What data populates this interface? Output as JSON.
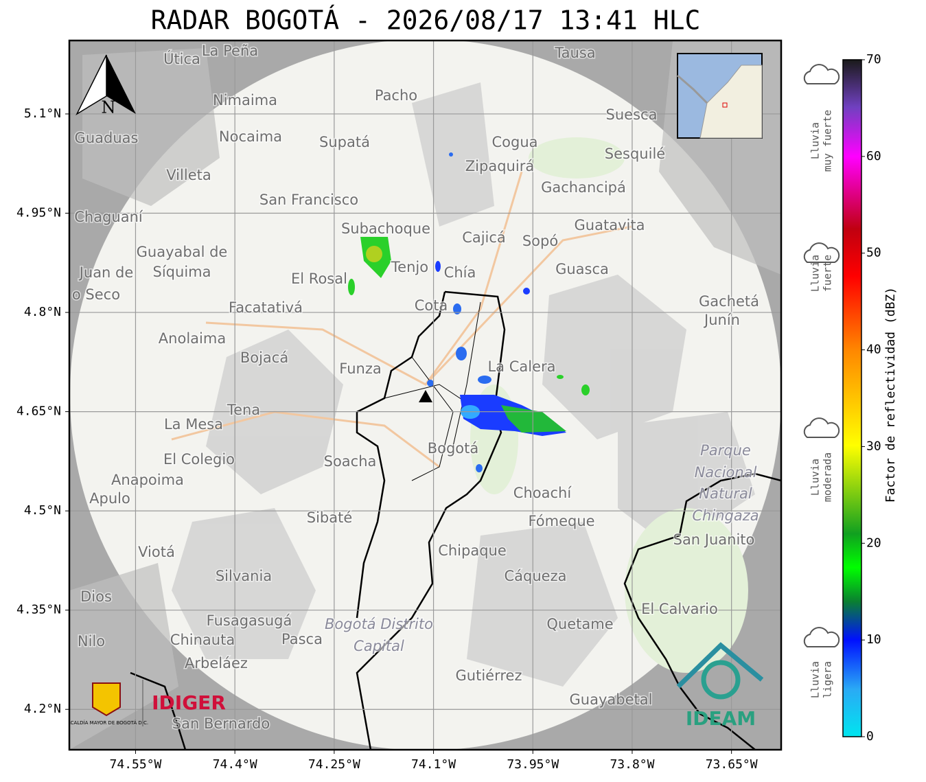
{
  "map": {
    "title": "RADAR BOGOTÁ - 2026/08/17 13:41 HLC",
    "xlim": [
      -74.65,
      -73.575
    ],
    "ylim": [
      4.139,
      5.211
    ],
    "xticks": [
      {
        "value": -74.55,
        "label": "74.55°W"
      },
      {
        "value": -74.4,
        "label": "74.4°W"
      },
      {
        "value": -74.25,
        "label": "74.25°W"
      },
      {
        "value": -74.1,
        "label": "74.1°W"
      },
      {
        "value": -73.95,
        "label": "73.95°W"
      },
      {
        "value": -73.8,
        "label": "73.8°W"
      },
      {
        "value": -73.65,
        "label": "73.65°W"
      }
    ],
    "yticks": [
      {
        "value": 5.1,
        "label": "5.1°N"
      },
      {
        "value": 4.95,
        "label": "4.95°N"
      },
      {
        "value": 4.8,
        "label": "4.8°N"
      },
      {
        "value": 4.65,
        "label": "4.65°N"
      },
      {
        "value": 4.5,
        "label": "4.5°N"
      },
      {
        "value": 4.35,
        "label": "4.35°N"
      },
      {
        "value": 4.2,
        "label": "4.2°N"
      }
    ],
    "grid": true,
    "north": "N",
    "places": [
      "La Peña",
      "Útica",
      "Tausa",
      "Pacho",
      "Nimaima",
      "Guaduas",
      "Nocaima",
      "Supatá",
      "Cogua",
      "Suesca",
      "Sesquilé",
      "Zipaquirá",
      "Villeta",
      "Gachancipá",
      "San Francisco",
      "Chaguaní",
      "Guatavita",
      "Subachoque",
      "Cajicá",
      "Sopó",
      "Guayabal de",
      "Síquima",
      "Tenjo",
      "Chía",
      "Guasca",
      "El Rosal",
      "Cota",
      "Facatativá",
      "Gachetá",
      "Junín",
      "Anolaima",
      "Bojacá",
      "Funza",
      "La Calera",
      "Tena",
      "La Mesa",
      "Bogotá",
      "Soacha",
      "El Colegio",
      "Anapoima",
      "Apulo",
      "Choachí",
      "Sibaté",
      "Fómeque",
      "Chipaque",
      "Viotá",
      "Silvania",
      "Cáqueza",
      "El Calvario",
      "Fusagasugá",
      "Chinauta",
      "Pasca",
      "Quetame",
      "Arbeláez",
      "Gutiérrez",
      "Guayabetal",
      "San Bernardo",
      "Nilo",
      "Dios",
      "San Juanito",
      "Juan de",
      "o Seco",
      "Parque",
      "Nacional",
      "Natural",
      "Chingaza",
      "Bogotá Distrito",
      "Capital"
    ],
    "logos": {
      "alcaldia": "ALCALDÍA MAYOR DE BOGOTÁ D.C.",
      "idiger": "IDIGER",
      "ideam": "IDEAM"
    }
  },
  "colorbar": {
    "label": "Factor de reflectividad (dBZ)",
    "lim": [
      0,
      70
    ],
    "ticks": [
      0,
      10,
      20,
      30,
      40,
      50,
      60,
      70
    ],
    "categories": [
      [
        "Lluvia",
        "muy fuerte"
      ],
      [
        "Lluvia",
        "fuerte"
      ],
      [
        "Lluvia",
        "moderada"
      ],
      [
        "Lluvia",
        "ligera"
      ]
    ]
  }
}
